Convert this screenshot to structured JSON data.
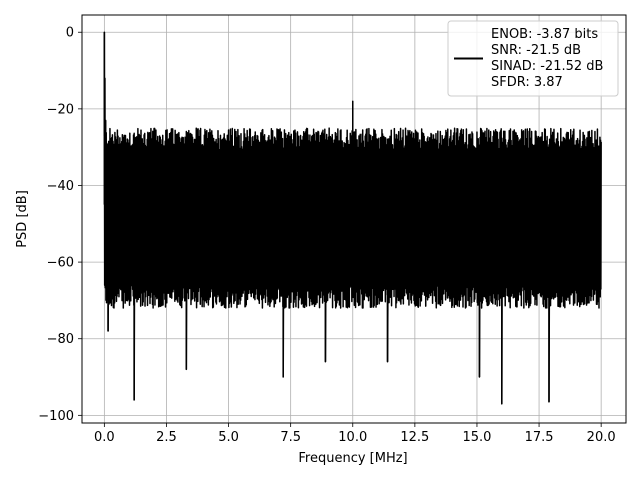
{
  "chart_data": {
    "type": "line",
    "xlabel": "Frequency [MHz]",
    "ylabel": "PSD [dB]",
    "xlim": [
      -0.9,
      21.0
    ],
    "ylim": [
      -102,
      4.5
    ],
    "xticks": [
      0.0,
      2.5,
      5.0,
      7.5,
      10.0,
      12.5,
      15.0,
      17.5,
      20.0
    ],
    "xtick_labels": [
      "0.0",
      "2.5",
      "5.0",
      "7.5",
      "10.0",
      "12.5",
      "15.0",
      "17.5",
      "20.0"
    ],
    "yticks": [
      0,
      -20,
      -40,
      -60,
      -80,
      -100
    ],
    "ytick_labels": [
      "0",
      "−20",
      "−40",
      "−60",
      "−80",
      "−100"
    ],
    "grid": true,
    "legend_placement": "top-right",
    "series": [
      {
        "color": "#000000",
        "noise_band": {
          "x_start": 0.0,
          "x_end": 20.0,
          "upper_db": [
            -31,
            -25
          ],
          "lower_db": [
            -72,
            -66
          ]
        },
        "x": [
          0.0,
          0.02,
          0.05,
          0.1,
          0.15,
          1.2,
          3.3,
          7.2,
          8.9,
          10.0,
          10.0,
          11.4,
          15.1,
          16.0,
          17.9
        ],
        "y": [
          0.0,
          -12.0,
          -23.0,
          -29.0,
          -78.0,
          -96.0,
          -88.0,
          -90.0,
          -86.0,
          -18.0,
          -50.0,
          -86.0,
          -90.0,
          -97.0,
          -96.5
        ]
      }
    ],
    "legend": {
      "line_color": "#000000",
      "lines": [
        "ENOB: -3.87 bits",
        "SNR: -21.5 dB",
        "SINAD: -21.52 dB",
        "SFDR: 3.87"
      ]
    }
  }
}
